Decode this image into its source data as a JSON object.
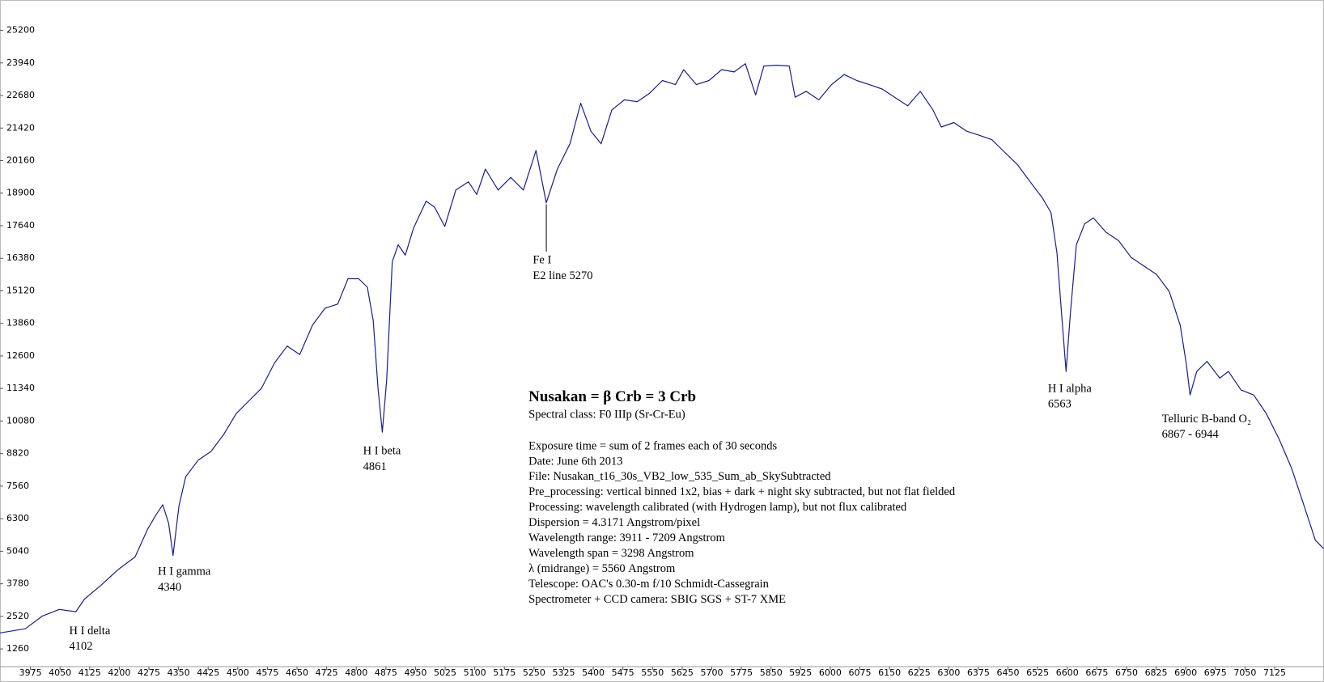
{
  "chart_data": {
    "type": "line",
    "x": [
      3898,
      3962,
      4005,
      4048,
      4090,
      4112,
      4155,
      4197,
      4240,
      4272,
      4293,
      4310,
      4325,
      4336,
      4351,
      4368,
      4400,
      4432,
      4464,
      4496,
      4528,
      4560,
      4593,
      4625,
      4657,
      4689,
      4721,
      4753,
      4779,
      4806,
      4828,
      4843,
      4855,
      4866,
      4877,
      4891,
      4906,
      4924,
      4945,
      4977,
      4998,
      5024,
      5052,
      5084,
      5105,
      5127,
      5159,
      5191,
      5223,
      5255,
      5281,
      5309,
      5341,
      5368,
      5394,
      5420,
      5447,
      5479,
      5511,
      5543,
      5575,
      5608,
      5629,
      5661,
      5693,
      5725,
      5757,
      5785,
      5811,
      5832,
      5864,
      5896,
      5911,
      5939,
      5971,
      6003,
      6035,
      6067,
      6099,
      6131,
      6163,
      6196,
      6228,
      6260,
      6281,
      6313,
      6345,
      6377,
      6409,
      6441,
      6474,
      6506,
      6538,
      6559,
      6574,
      6587,
      6597,
      6608,
      6623,
      6644,
      6666,
      6698,
      6730,
      6762,
      6794,
      6826,
      6858,
      6886,
      6901,
      6911,
      6928,
      6954,
      6986,
      7008,
      7040,
      7072,
      7104,
      7136,
      7168,
      7200,
      7228,
      7249
    ],
    "series": [
      {
        "name": "Nusakan",
        "color": "#1c1c8f",
        "values": [
          1880,
          2040,
          2530,
          2790,
          2700,
          3190,
          3740,
          4330,
          4820,
          5900,
          6450,
          6840,
          6120,
          4880,
          6780,
          7920,
          8570,
          8900,
          9550,
          10370,
          10860,
          11350,
          12330,
          12980,
          12650,
          13790,
          14450,
          14610,
          15590,
          15590,
          15260,
          13960,
          11350,
          9650,
          11670,
          16240,
          16900,
          16500,
          17550,
          18590,
          18360,
          17610,
          19020,
          19340,
          18850,
          19830,
          19020,
          19510,
          19020,
          20550,
          18530,
          19830,
          20810,
          22380,
          21300,
          20810,
          22120,
          22510,
          22440,
          22770,
          23260,
          23100,
          23680,
          23100,
          23260,
          23680,
          23590,
          23910,
          22700,
          23820,
          23850,
          23820,
          22610,
          22840,
          22510,
          23100,
          23490,
          23260,
          23100,
          22930,
          22610,
          22280,
          22840,
          22120,
          21460,
          21630,
          21300,
          21140,
          20970,
          20490,
          20000,
          19340,
          18690,
          18140,
          16570,
          13960,
          12000,
          14280,
          16900,
          17710,
          17940,
          17390,
          17060,
          16410,
          16080,
          15750,
          15100,
          13790,
          12330,
          11090,
          12000,
          12390,
          11740,
          12000,
          11280,
          11090,
          10370,
          9390,
          8250,
          6780,
          5470,
          5140
        ]
      }
    ],
    "xlim": [
      3898,
      7250
    ],
    "ylim": [
      575,
      26375
    ],
    "xticks": [
      3975,
      4050,
      4125,
      4200,
      4275,
      4350,
      4425,
      4500,
      4575,
      4650,
      4725,
      4800,
      4875,
      4950,
      5025,
      5100,
      5175,
      5250,
      5325,
      5400,
      5475,
      5550,
      5625,
      5700,
      5775,
      5850,
      5925,
      6000,
      6075,
      6150,
      6225,
      6300,
      6375,
      6450,
      6525,
      6600,
      6675,
      6750,
      6825,
      6900,
      6975,
      7050,
      7125
    ],
    "yticks": [
      1260,
      2520,
      3780,
      5040,
      6300,
      7560,
      8820,
      10080,
      11340,
      12600,
      13860,
      15120,
      16380,
      17640,
      18900,
      20160,
      21420,
      22680,
      23940,
      25200
    ],
    "annotations": [
      {
        "label": "H I delta",
        "value": "4102"
      },
      {
        "label": "H I gamma",
        "value": "4340"
      },
      {
        "label": "H I beta",
        "value": "4861"
      },
      {
        "label": "Fe I",
        "value": "E2 line 5270"
      },
      {
        "label": "H I alpha",
        "value": "6563"
      },
      {
        "label": "Telluric B-band O₂",
        "value": "6867 - 6944"
      }
    ],
    "info": {
      "title": "Nusakan = β Crb = 3 Crb",
      "subtitle": "Spectral class: F0 IIIp (Sr-Cr-Eu)",
      "lines": [
        "Exposure time = sum of 2 frames each of 30 seconds",
        "Date: June 6th 2013",
        "File: Nusakan_t16_30s_VB2_low_535_Sum_ab_SkySubtracted",
        "Pre_processing: vertical binned 1x2, bias + dark + night sky subtracted, but not flat fielded",
        "Processing: wavelength calibrated (with Hydrogen lamp), but not flux calibrated",
        "Dispersion = 4.3171 Angstrom/pixel",
        "Wavelength range: 3911 - 7209 Angstrom",
        "Wavelength span = 3298 Angstrom",
        "λ (midrange) = 5560 Angstrom",
        "Telescope: OAC's 0.30-m f/10 Schmidt-Cassegrain",
        "Spectrometer + CCD camera: SBIG SGS + ST-7 XME"
      ]
    }
  }
}
